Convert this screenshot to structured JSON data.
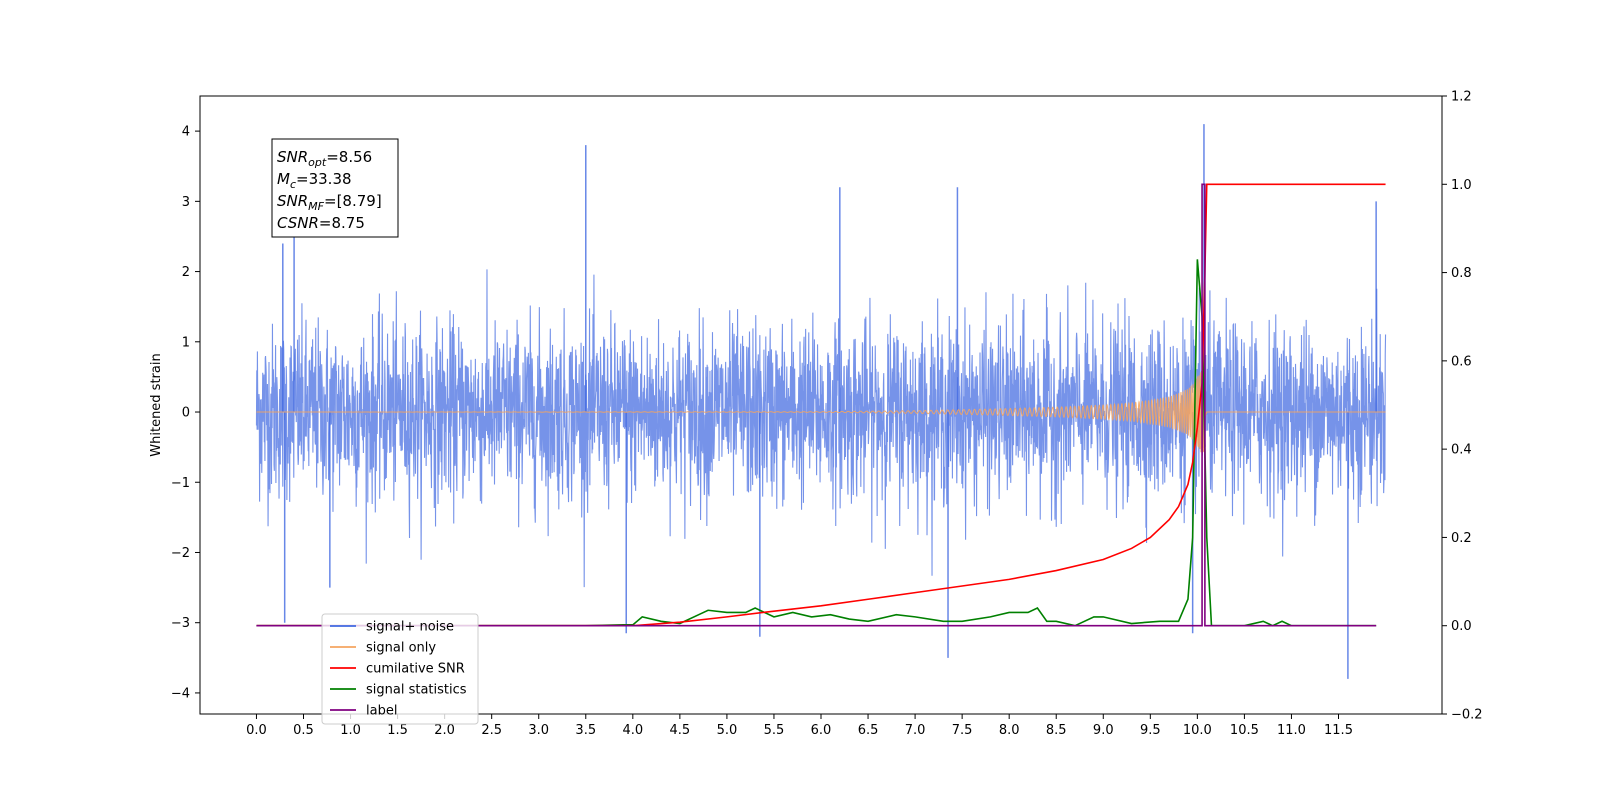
{
  "chart_data": {
    "type": "line",
    "xlabel": "",
    "ylabel": "Whitened strain",
    "xlim": [
      -0.6,
      12.6
    ],
    "ylim": [
      -4.3,
      4.5
    ],
    "y2lim": [
      -0.2,
      1.2
    ],
    "x_ticks": [
      "0.0",
      "0.5",
      "1.0",
      "1.5",
      "2.0",
      "2.5",
      "3.0",
      "3.5",
      "4.0",
      "4.5",
      "5.0",
      "5.5",
      "6.0",
      "6.5",
      "7.0",
      "7.5",
      "8.0",
      "8.5",
      "9.0",
      "9.5",
      "10.0",
      "10.5",
      "11.0",
      "11.5"
    ],
    "y_ticks": [
      "4",
      "3",
      "2",
      "1",
      "0",
      "−1",
      "−2",
      "−3",
      "−4"
    ],
    "y2_ticks": [
      "1.2",
      "1.0",
      "0.8",
      "0.6",
      "0.4",
      "0.2",
      "0.0",
      "−0.2"
    ],
    "annotation": {
      "lines": [
        {
          "base": "SNR",
          "sub": "opt",
          "rest": "=8.56"
        },
        {
          "base": "M",
          "sub": "c",
          "rest": "=33.38"
        },
        {
          "base": "SNR",
          "sub": "MF",
          "rest": "=[8.79]"
        },
        {
          "base": "CSNR",
          "sub": "",
          "rest": "=8.75"
        }
      ]
    },
    "merger_time": 10.08,
    "series": [
      {
        "name": "signal+ noise",
        "axis": "left",
        "color": "#4169e1",
        "description_range": [
          0.0,
          12.0
        ],
        "typical_amplitude": [
          -1.8,
          1.8
        ],
        "extremes": [
          {
            "x": 0.28,
            "y": 2.4
          },
          {
            "x": 0.3,
            "y": -3.0
          },
          {
            "x": 0.4,
            "y": 2.5
          },
          {
            "x": 0.78,
            "y": -2.5
          },
          {
            "x": 3.5,
            "y": 3.8
          },
          {
            "x": 3.93,
            "y": -3.15
          },
          {
            "x": 5.35,
            "y": -3.2
          },
          {
            "x": 6.2,
            "y": 3.2
          },
          {
            "x": 7.35,
            "y": -3.5
          },
          {
            "x": 7.45,
            "y": 3.2
          },
          {
            "x": 9.95,
            "y": -3.15
          },
          {
            "x": 10.07,
            "y": 4.1
          },
          {
            "x": 11.6,
            "y": -3.8
          },
          {
            "x": 11.9,
            "y": 3.0
          }
        ]
      },
      {
        "name": "signal only",
        "axis": "left",
        "color": "#f4a460",
        "x": [
          0,
          6.0,
          7.0,
          8.0,
          8.5,
          9.0,
          9.3,
          9.5,
          9.7,
          9.8,
          9.9,
          9.95,
          10.0,
          10.05,
          10.08,
          10.1,
          12.0
        ],
        "envelope": [
          0.0,
          0.005,
          0.02,
          0.05,
          0.07,
          0.1,
          0.13,
          0.17,
          0.22,
          0.27,
          0.33,
          0.4,
          0.5,
          0.6,
          0.55,
          0.0,
          0.0
        ]
      },
      {
        "name": "cumilative SNR",
        "axis": "right",
        "color": "#ff0000",
        "x": [
          0.0,
          4.0,
          4.5,
          5.0,
          5.5,
          6.0,
          6.5,
          7.0,
          7.5,
          8.0,
          8.5,
          9.0,
          9.3,
          9.5,
          9.7,
          9.8,
          9.9,
          9.95,
          10.0,
          10.05,
          10.08,
          10.1,
          11.0,
          12.0
        ],
        "values": [
          0.0,
          0.0,
          0.008,
          0.02,
          0.033,
          0.045,
          0.06,
          0.075,
          0.09,
          0.105,
          0.125,
          0.15,
          0.175,
          0.2,
          0.24,
          0.27,
          0.32,
          0.37,
          0.45,
          0.55,
          0.8,
          1.0,
          1.0,
          1.0
        ]
      },
      {
        "name": "signal statistics",
        "axis": "right",
        "color": "#008000",
        "x": [
          0.0,
          3.5,
          3.9,
          4.0,
          4.1,
          4.3,
          4.5,
          4.7,
          4.8,
          5.0,
          5.2,
          5.3,
          5.5,
          5.7,
          5.9,
          6.1,
          6.3,
          6.5,
          6.8,
          7.0,
          7.3,
          7.5,
          7.8,
          8.0,
          8.2,
          8.3,
          8.4,
          8.5,
          8.7,
          8.9,
          9.0,
          9.3,
          9.6,
          9.8,
          9.9,
          9.95,
          10.0,
          10.05,
          10.1,
          10.15,
          10.5,
          10.7,
          10.8,
          10.9,
          11.0,
          11.5,
          11.9
        ],
        "values": [
          0.0,
          0.0,
          0.002,
          0.002,
          0.02,
          0.01,
          0.005,
          0.025,
          0.035,
          0.03,
          0.03,
          0.04,
          0.02,
          0.03,
          0.02,
          0.025,
          0.015,
          0.01,
          0.025,
          0.02,
          0.01,
          0.01,
          0.02,
          0.03,
          0.03,
          0.04,
          0.01,
          0.01,
          0.0,
          0.02,
          0.02,
          0.005,
          0.01,
          0.01,
          0.06,
          0.2,
          0.83,
          0.7,
          0.2,
          0.0,
          0.0,
          0.01,
          0.0,
          0.01,
          0.0,
          0.0,
          0.0
        ]
      },
      {
        "name": "label",
        "axis": "right",
        "color": "#800080",
        "x": [
          0.0,
          10.05,
          10.05,
          10.08,
          10.08,
          11.9
        ],
        "values": [
          0.0,
          0.0,
          1.0,
          1.0,
          0.0,
          0.0
        ]
      }
    ],
    "legend": {
      "placement": "lower-left",
      "entries": [
        {
          "label": "signal+ noise",
          "color": "#4169e1"
        },
        {
          "label": "signal only",
          "color": "#f4a460"
        },
        {
          "label": "cumilative SNR",
          "color": "#ff0000"
        },
        {
          "label": "signal statistics",
          "color": "#008000"
        },
        {
          "label": "label",
          "color": "#800080"
        }
      ]
    }
  }
}
